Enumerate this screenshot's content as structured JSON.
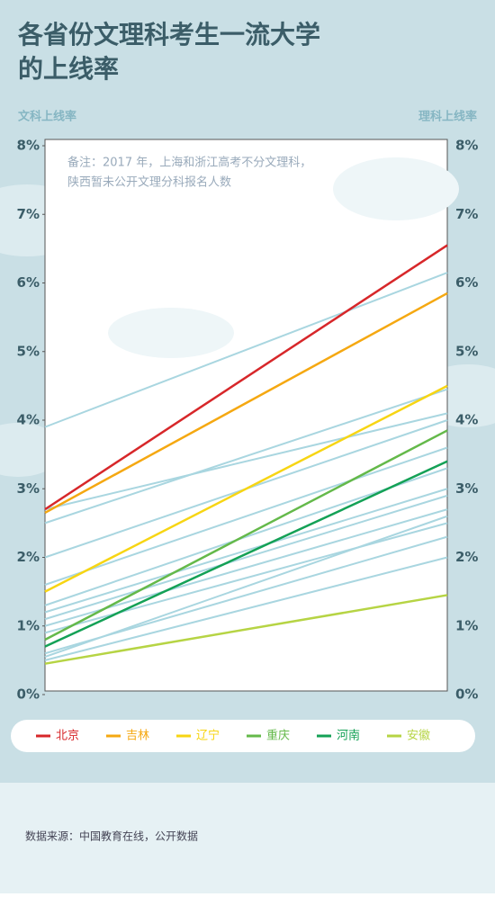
{
  "chart_data": {
    "type": "slope",
    "title": [
      "各省份文理科考生一流大学",
      "的上线率"
    ],
    "note": [
      "备注：2017 年，上海和浙江高考不分文理科，",
      "陕西暂未公开文理分科报名人数"
    ],
    "source": "数据来源：中国教育在线，公开数据",
    "categories": [
      "文科上线率",
      "理科上线率"
    ],
    "ylim": [
      0,
      8
    ],
    "yticks": [
      {
        "value": 0,
        "label": "0%"
      },
      {
        "value": 1,
        "label": "1%"
      },
      {
        "value": 2,
        "label": "2%"
      },
      {
        "value": 3,
        "label": "3%"
      },
      {
        "value": 4,
        "label": "4%"
      },
      {
        "value": 5,
        "label": "5%"
      },
      {
        "value": 6,
        "label": "6%"
      },
      {
        "value": 7,
        "label": "7%"
      },
      {
        "value": 8,
        "label": "8%"
      }
    ],
    "series": [
      {
        "color": "#a9d6e0",
        "values": [
          3.9,
          6.15
        ]
      },
      {
        "color": "#a9d6e0",
        "values": [
          2.5,
          4.45
        ]
      },
      {
        "color": "#a9d6e0",
        "values": [
          2.7,
          4.1
        ]
      },
      {
        "color": "#a9d6e0",
        "values": [
          2.0,
          4.0
        ]
      },
      {
        "color": "#a9d6e0",
        "values": [
          1.6,
          3.6
        ]
      },
      {
        "color": "#a9d6e0",
        "values": [
          1.3,
          3.3
        ]
      },
      {
        "color": "#a9d6e0",
        "values": [
          1.2,
          3.0
        ]
      },
      {
        "color": "#a9d6e0",
        "values": [
          1.1,
          2.9
        ]
      },
      {
        "color": "#a9d6e0",
        "values": [
          1.0,
          2.7
        ]
      },
      {
        "color": "#a9d6e0",
        "values": [
          0.9,
          2.5
        ]
      },
      {
        "color": "#a9d6e0",
        "values": [
          0.55,
          2.6
        ]
      },
      {
        "color": "#a9d6e0",
        "values": [
          0.6,
          2.3
        ]
      },
      {
        "color": "#a9d6e0",
        "values": [
          0.5,
          2.0
        ]
      },
      {
        "name": "北京",
        "color": "#d7272a",
        "values": [
          2.7,
          6.55
        ]
      },
      {
        "name": "吉林",
        "color": "#f5a811",
        "values": [
          2.65,
          5.85
        ]
      },
      {
        "name": "辽宁",
        "color": "#f7d513",
        "values": [
          1.5,
          4.5
        ]
      },
      {
        "name": "重庆",
        "color": "#64b94a",
        "values": [
          0.8,
          3.85
        ]
      },
      {
        "name": "河南",
        "color": "#14a156",
        "values": [
          0.7,
          3.4
        ]
      },
      {
        "name": "安徽",
        "color": "#b6d444",
        "values": [
          0.45,
          1.45
        ]
      }
    ]
  }
}
